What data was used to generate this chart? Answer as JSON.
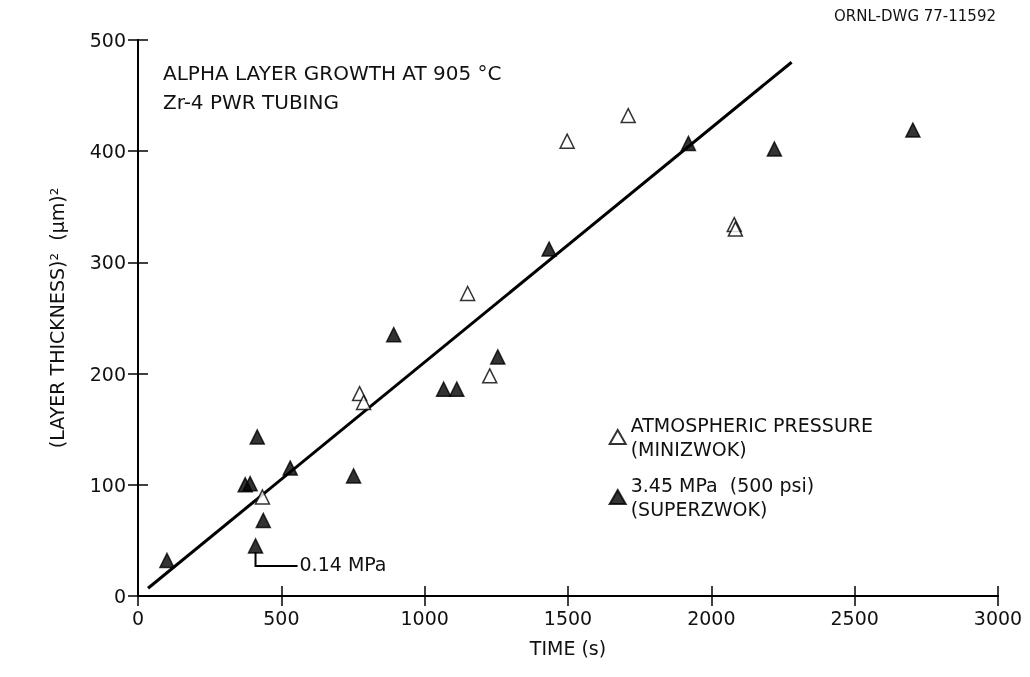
{
  "chart_data": {
    "type": "scatter",
    "title": "ALPHA LAYER GROWTH AT 905 °C",
    "subtitle": "Zr-4 PWR TUBING",
    "xlabel": "TIME (s)",
    "ylabel": "(LAYER THICKNESS)²  (μm)²",
    "annotations": [
      "ORNL-DWG 77-11592",
      {
        "text": "0.14 MPa",
        "x": 410,
        "y": 45
      }
    ],
    "series": [
      {
        "name": "ATMOSPHERIC PRESSURE\n(MINIZWOK)",
        "color": "#ffffff",
        "x": [
          434,
          773,
          787,
          1150,
          1227,
          1497,
          1710,
          2080,
          2084
        ],
        "values": [
          89,
          182,
          174,
          272,
          198,
          409,
          432,
          334,
          330
        ]
      },
      {
        "name": "3.45 MPa  (500 psi)\n(SUPERZWOK)",
        "color": "#000000",
        "x": [
          101,
          374,
          391,
          416,
          437,
          410,
          531,
          752,
          892,
          1066,
          1112,
          1255,
          1434,
          1920,
          2220,
          2703
        ],
        "values": [
          32,
          100,
          101,
          143,
          68,
          45,
          115,
          108,
          235,
          186,
          186,
          215,
          312,
          407,
          402,
          419
        ]
      },
      {
        "type": "line",
        "color": "#000000",
        "marker": "none",
        "x": [
          35,
          2280
        ],
        "values": [
          7,
          480
        ]
      }
    ],
    "xlim": [
      0,
      3000
    ],
    "xticks": [
      0,
      500,
      1000,
      1500,
      2000,
      2500,
      3000
    ],
    "ylim": [
      0,
      500
    ],
    "yticks": [
      0,
      100,
      200,
      300,
      400,
      500
    ],
    "grid": false,
    "legend": "bottom right",
    "marker": "triangle",
    "line_style": "solid"
  }
}
